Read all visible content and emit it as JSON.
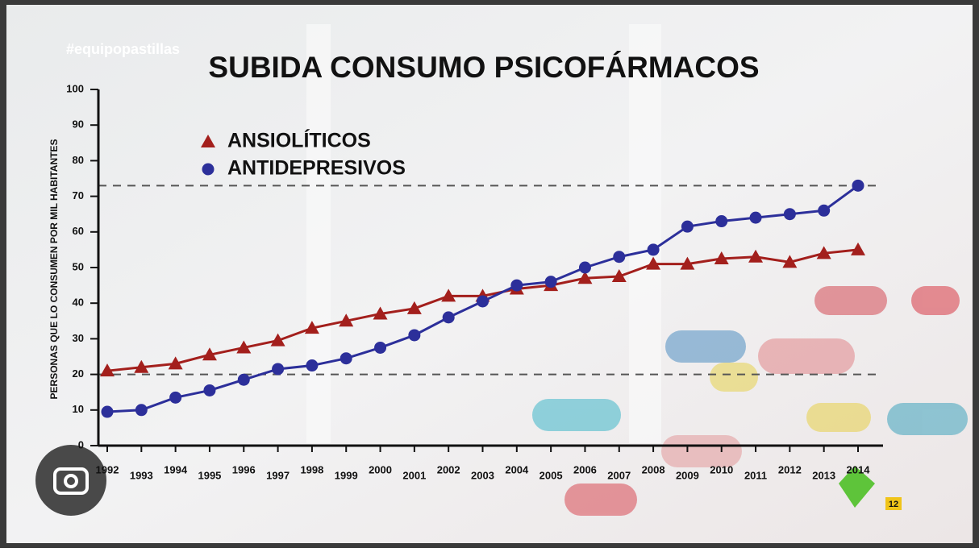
{
  "chart_data": {
    "type": "line",
    "title": "SUBIDA CONSUMO PSICOFÁRMACOS",
    "hashtag": "#equipopastillas",
    "badge": "12",
    "y_label": "PERSONAS QUE LO CONSUMEN POR MIL HABITANTES",
    "categories": [
      "1992",
      "1993",
      "1994",
      "1995",
      "1996",
      "1997",
      "1998",
      "1999",
      "2000",
      "2001",
      "2002",
      "2003",
      "2004",
      "2005",
      "2006",
      "2007",
      "2008",
      "2009",
      "2010",
      "2011",
      "2012",
      "2013",
      "2014"
    ],
    "series": [
      {
        "name": "ANSIOLÍTICOS",
        "color": "#a31f1c",
        "marker": "triangle",
        "values": [
          21,
          22,
          23,
          25.5,
          27.5,
          29.5,
          33,
          35,
          37,
          38.5,
          42,
          42,
          44,
          45,
          47,
          47.5,
          51,
          51,
          52.5,
          53,
          51.5,
          54,
          55
        ]
      },
      {
        "name": "ANTIDEPRESIVOS",
        "color": "#2c2f9a",
        "marker": "circle",
        "values": [
          9.5,
          10,
          13.5,
          15.5,
          18.5,
          21.5,
          22.5,
          24.5,
          27.5,
          31,
          36,
          40.5,
          45,
          46,
          50,
          53,
          55,
          61.5,
          63,
          64,
          65,
          66,
          73
        ]
      }
    ],
    "reference_lines": [
      20,
      73
    ],
    "ylim": [
      0,
      100
    ],
    "yticks": [
      0,
      10,
      20,
      30,
      40,
      50,
      60,
      70,
      80,
      90,
      100
    ]
  }
}
